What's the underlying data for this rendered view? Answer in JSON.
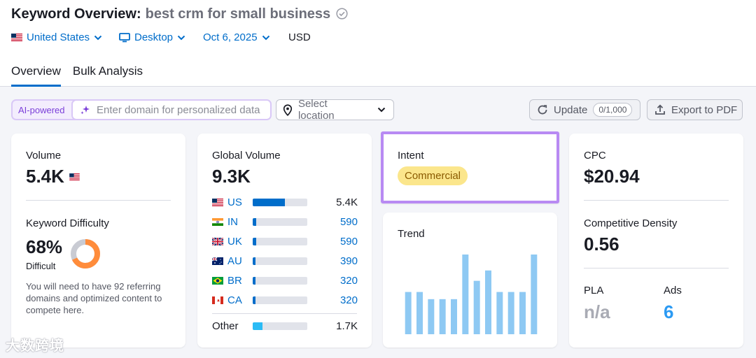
{
  "header": {
    "title": "Keyword Overview:",
    "keyword": "best crm for small business",
    "filters": {
      "country": "United States",
      "device": "Desktop",
      "date": "Oct 6, 2025",
      "currency": "USD"
    },
    "tabs": [
      "Overview",
      "Bulk Analysis"
    ]
  },
  "toolbar": {
    "ai_label": "AI-powered",
    "domain_placeholder": "Enter domain for personalized data",
    "location_placeholder": "Select location",
    "update_label": "Update",
    "update_count": "0/1,000",
    "export_label": "Export to PDF"
  },
  "volume": {
    "label": "Volume",
    "value": "5.4K",
    "kd_label": "Keyword Difficulty",
    "kd_value": "68%",
    "kd_level": "Difficult",
    "kd_ratio": 0.68,
    "kd_color": "#ff8c3b",
    "note": "You will need to have 92 referring domains and optimized content to compete here."
  },
  "global": {
    "label": "Global Volume",
    "value": "9.3K",
    "rows": [
      {
        "code": "US",
        "value": "5.4K",
        "share": 0.59
      },
      {
        "code": "IN",
        "value": "590",
        "share": 0.06
      },
      {
        "code": "UK",
        "value": "590",
        "share": 0.06
      },
      {
        "code": "AU",
        "value": "390",
        "share": 0.04
      },
      {
        "code": "BR",
        "value": "320",
        "share": 0.035
      },
      {
        "code": "CA",
        "value": "320",
        "share": 0.035
      }
    ],
    "other_label": "Other",
    "other_value": "1.7K",
    "other_share": 0.18
  },
  "intent": {
    "label": "Intent",
    "value": "Commercial"
  },
  "trend": {
    "label": "Trend",
    "chart_data": {
      "type": "bar",
      "values": [
        0.53,
        0.53,
        0.44,
        0.44,
        0.44,
        1.0,
        0.67,
        0.8,
        0.53,
        0.53,
        0.53,
        1.0
      ],
      "color": "#8ec9f3"
    }
  },
  "cpc": {
    "label": "CPC",
    "value": "$20.94",
    "density_label": "Competitive Density",
    "density_value": "0.56",
    "pla_label": "PLA",
    "pla_value": "n/a",
    "ads_label": "Ads",
    "ads_value": "6"
  },
  "watermark": "大数跨境",
  "colors": {
    "accent": "#006dca",
    "ai_purple": "#7b3fd9",
    "intent_border": "#b88af3"
  }
}
